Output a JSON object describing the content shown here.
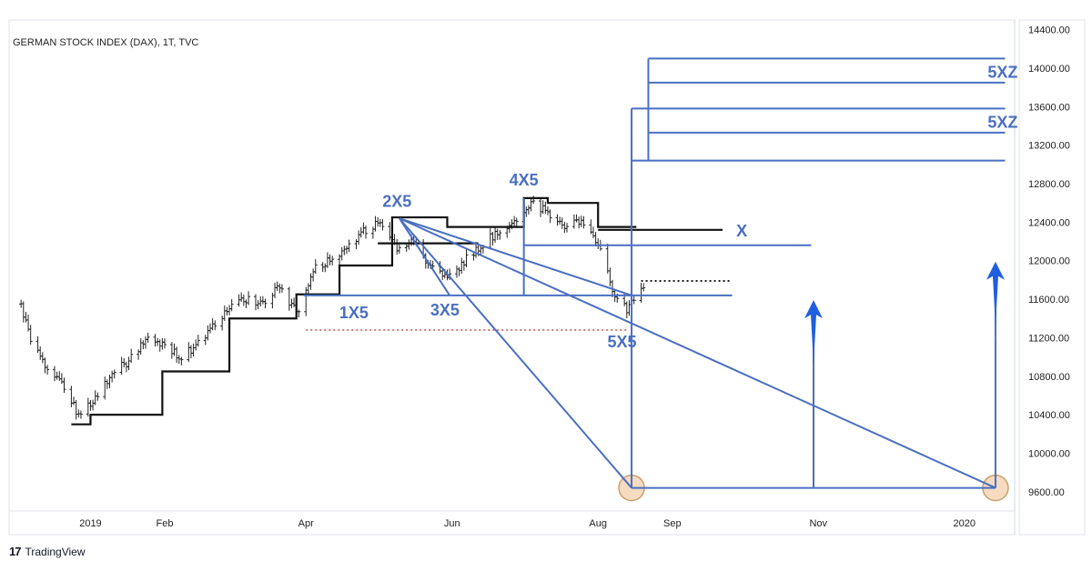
{
  "chart_data": {
    "type": "ohlc",
    "title": "GERMAN STOCK INDEX (DAX), 1T, TVC",
    "colors": {
      "price": "#222222",
      "step": "#111111",
      "annotation": "#4a6fc2",
      "dotted_red": "#c0504d",
      "circle_fill": "#f5dcc0",
      "circle_stroke": "#c8a070"
    },
    "y_axis": {
      "ylim": [
        9400,
        14500
      ],
      "ticks": [
        9600,
        10000,
        10400,
        10800,
        11200,
        11600,
        12000,
        12400,
        12800,
        13200,
        13600,
        14000,
        14400
      ],
      "tick_labels": [
        "9600.00",
        "10000.00",
        "10400.00",
        "10800.00",
        "11200.00",
        "11600.00",
        "12000.00",
        "12400.00",
        "12800.00",
        "13200.00",
        "13600.00",
        "14000.00",
        "14400.00"
      ]
    },
    "x_axis": {
      "range": [
        "2018-11-28",
        "2020-01-22"
      ],
      "ticks": [
        {
          "date": "2019-01-01",
          "label": "2019"
        },
        {
          "date": "2019-02-01",
          "label": "Feb"
        },
        {
          "date": "2019-04-01",
          "label": "Apr"
        },
        {
          "date": "2019-06-01",
          "label": "Jun"
        },
        {
          "date": "2019-08-01",
          "label": "Aug"
        },
        {
          "date": "2019-09-01",
          "label": "Sep"
        },
        {
          "date": "2019-11-01",
          "label": "Nov"
        },
        {
          "date": "2020-01-01",
          "label": "2020"
        }
      ]
    },
    "price_path": [
      [
        "2018-12-03",
        11550
      ],
      [
        "2018-12-07",
        11150
      ],
      [
        "2018-12-14",
        10900
      ],
      [
        "2018-12-20",
        10700
      ],
      [
        "2018-12-27",
        10400
      ],
      [
        "2019-01-03",
        10550
      ],
      [
        "2019-01-10",
        10850
      ],
      [
        "2019-01-17",
        10950
      ],
      [
        "2019-01-24",
        11200
      ],
      [
        "2019-01-31",
        11150
      ],
      [
        "2019-02-07",
        11000
      ],
      [
        "2019-02-14",
        11100
      ],
      [
        "2019-02-21",
        11300
      ],
      [
        "2019-02-28",
        11500
      ],
      [
        "2019-03-07",
        11600
      ],
      [
        "2019-03-14",
        11550
      ],
      [
        "2019-03-21",
        11750
      ],
      [
        "2019-03-28",
        11450
      ],
      [
        "2019-04-04",
        11900
      ],
      [
        "2019-04-11",
        12000
      ],
      [
        "2019-04-18",
        12150
      ],
      [
        "2019-04-25",
        12300
      ],
      [
        "2019-05-02",
        12400
      ],
      [
        "2019-05-09",
        12100
      ],
      [
        "2019-05-16",
        12200
      ],
      [
        "2019-05-23",
        11950
      ],
      [
        "2019-05-30",
        11800
      ],
      [
        "2019-06-06",
        12000
      ],
      [
        "2019-06-13",
        12150
      ],
      [
        "2019-06-20",
        12300
      ],
      [
        "2019-06-27",
        12400
      ],
      [
        "2019-07-04",
        12600
      ],
      [
        "2019-07-11",
        12500
      ],
      [
        "2019-07-18",
        12350
      ],
      [
        "2019-07-25",
        12400
      ],
      [
        "2019-08-01",
        12150
      ],
      [
        "2019-08-08",
        11650
      ],
      [
        "2019-08-13",
        11500
      ],
      [
        "2019-08-20",
        11700
      ]
    ],
    "step_line": [
      [
        "2018-12-24",
        10300
      ],
      [
        "2019-01-01",
        10300
      ],
      [
        "2019-01-01",
        10400
      ],
      [
        "2019-01-31",
        10400
      ],
      [
        "2019-01-31",
        10850
      ],
      [
        "2019-02-28",
        10850
      ],
      [
        "2019-02-28",
        11400
      ],
      [
        "2019-03-28",
        11400
      ],
      [
        "2019-03-28",
        11650
      ],
      [
        "2019-04-15",
        11650
      ],
      [
        "2019-04-15",
        11950
      ],
      [
        "2019-05-07",
        11950
      ],
      [
        "2019-05-07",
        12450
      ],
      [
        "2019-05-30",
        12450
      ],
      [
        "2019-05-30",
        12350
      ],
      [
        "2019-07-01",
        12350
      ],
      [
        "2019-07-01",
        12650
      ],
      [
        "2019-07-11",
        12650
      ],
      [
        "2019-07-11",
        12600
      ],
      [
        "2019-08-01",
        12600
      ],
      [
        "2019-08-01",
        12350
      ],
      [
        "2019-08-17",
        12350
      ]
    ],
    "black_lines": [
      {
        "from": [
          "2019-05-01",
          12180
        ],
        "to": [
          "2019-06-12",
          12180
        ]
      },
      {
        "from": [
          "2019-08-01",
          12320
        ],
        "to": [
          "2019-09-22",
          12320
        ]
      }
    ],
    "blue_lines": [
      {
        "from": [
          "2019-03-31",
          11640
        ],
        "to": [
          "2019-09-26",
          11640
        ]
      },
      {
        "from": [
          "2019-07-01",
          12160
        ],
        "to": [
          "2019-10-29",
          12160
        ]
      },
      {
        "from": [
          "2019-07-01",
          11640
        ],
        "to": [
          "2019-07-01",
          12650
        ]
      },
      {
        "from": [
          "2019-05-10",
          12440
        ],
        "to": [
          "2019-05-31",
          11640
        ]
      },
      {
        "from": [
          "2019-05-10",
          12440
        ],
        "to": [
          "2019-08-15",
          9640
        ]
      },
      {
        "from": [
          "2019-05-10",
          12440
        ],
        "to": [
          "2019-08-15",
          11640
        ]
      },
      {
        "from": [
          "2019-05-10",
          12440
        ],
        "to": [
          "2020-01-14",
          9640
        ]
      },
      {
        "from": [
          "2019-08-15",
          9640
        ],
        "to": [
          "2020-01-14",
          9640
        ]
      },
      {
        "from": [
          "2019-08-15",
          9640
        ],
        "to": [
          "2019-08-15",
          13580
        ]
      },
      {
        "from": [
          "2019-08-15",
          13580
        ],
        "to": [
          "2020-01-18",
          13580
        ]
      },
      {
        "from": [
          "2019-08-15",
          13040
        ],
        "to": [
          "2020-01-18",
          13040
        ]
      },
      {
        "from": [
          "2019-08-22",
          13040
        ],
        "to": [
          "2019-08-22",
          13580
        ]
      },
      {
        "from": [
          "2019-08-22",
          13330
        ],
        "to": [
          "2020-01-18",
          13330
        ]
      },
      {
        "from": [
          "2019-08-22",
          13580
        ],
        "to": [
          "2019-08-22",
          14100
        ]
      },
      {
        "from": [
          "2019-08-22",
          14100
        ],
        "to": [
          "2020-01-18",
          14100
        ]
      },
      {
        "from": [
          "2019-08-22",
          13850
        ],
        "to": [
          "2020-01-18",
          13850
        ]
      },
      {
        "from": [
          "2019-10-30",
          9640
        ],
        "to": [
          "2019-10-30",
          10900
        ]
      },
      {
        "from": [
          "2020-01-14",
          9640
        ],
        "to": [
          "2020-01-14",
          11200
        ]
      }
    ],
    "arrows": [
      {
        "x": "2019-10-30",
        "from": 10900,
        "to": 11590
      },
      {
        "x": "2020-01-14",
        "from": 11200,
        "to": 11990
      }
    ],
    "red_dotted": {
      "from": [
        "2019-04-01",
        11280
      ],
      "to": [
        "2019-08-13",
        11280
      ]
    },
    "black_dotted": {
      "from": [
        "2019-08-19",
        11790
      ],
      "to": [
        "2019-09-26",
        11790
      ]
    },
    "circles": [
      {
        "x": "2019-08-15",
        "y": 9640
      },
      {
        "x": "2020-01-14",
        "y": 9640
      }
    ],
    "annotations": [
      {
        "text": "2X5",
        "x": "2019-05-09",
        "y": 12560
      },
      {
        "text": "4X5",
        "x": "2019-07-01",
        "y": 12780
      },
      {
        "text": "1X5",
        "x": "2019-04-21",
        "y": 11400
      },
      {
        "text": "3X5",
        "x": "2019-05-29",
        "y": 11430
      },
      {
        "text": "5X5",
        "x": "2019-08-11",
        "y": 11100
      },
      {
        "text": "X",
        "x": "2019-09-30",
        "y": 12250
      },
      {
        "text": "5XZ",
        "x": "2020-01-17",
        "y": 13900
      },
      {
        "text": "5XZ",
        "x": "2020-01-17",
        "y": 13380
      }
    ]
  },
  "branding": {
    "logo_mark": "17",
    "logo_text": "TradingView"
  }
}
